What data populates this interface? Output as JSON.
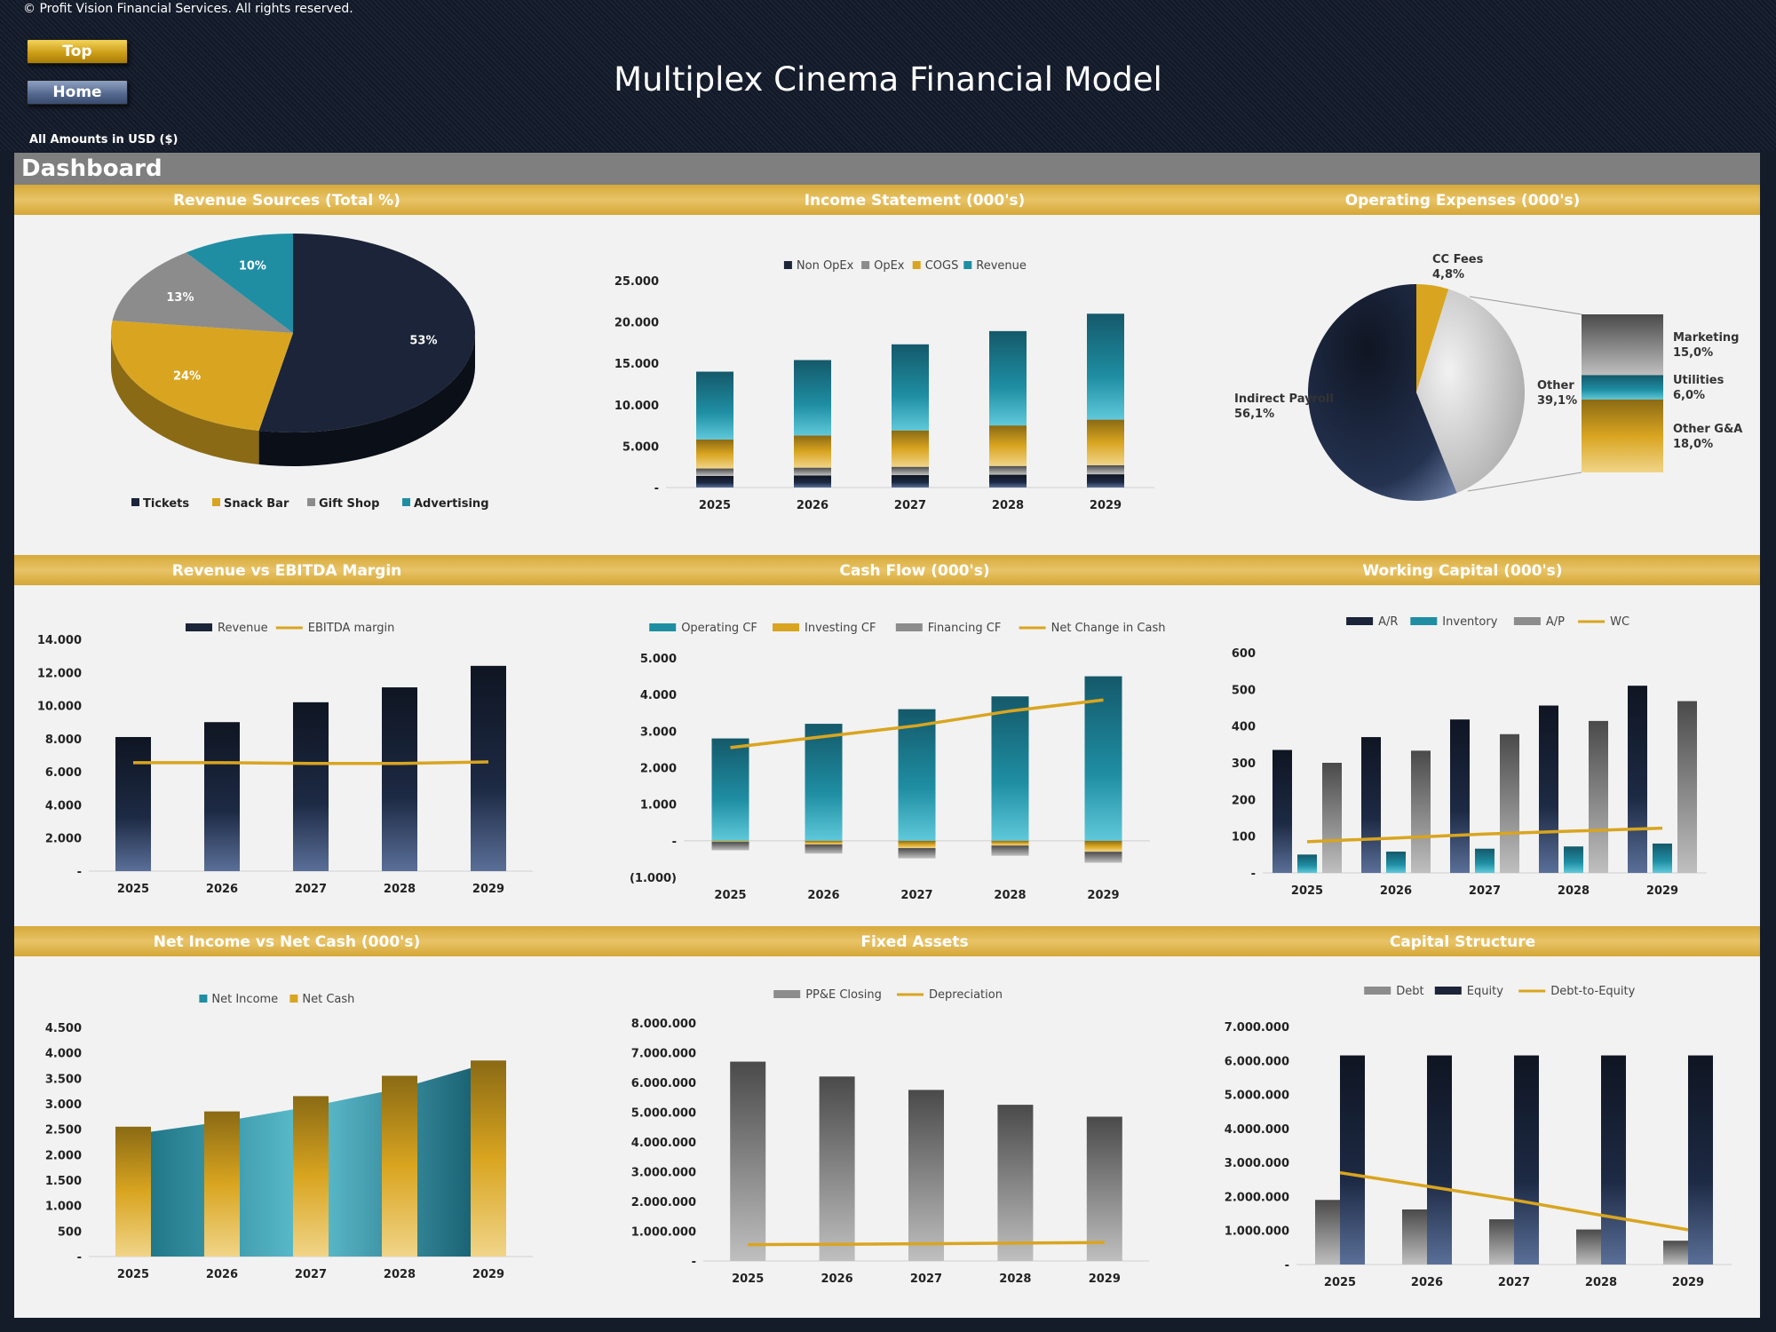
{
  "header": {
    "copyright": "© Profit Vision Financial Services. All rights reserved.",
    "title": "Multiplex Cinema Financial Model",
    "amounts_note": "All Amounts in  USD ($)",
    "buttons": {
      "top": "Top",
      "home": "Home"
    },
    "dashboard_label": "Dashboard"
  },
  "colors": {
    "navy": "#1b2438",
    "gold": "#d9a520",
    "grey": "#8c8c8c",
    "teal": "#1f8ea3",
    "strip": "#dcae45"
  },
  "chart_data": [
    {
      "id": "revenue_sources",
      "type": "pie",
      "title": "Revenue Sources (Total %)",
      "labels": [
        "Tickets",
        "Snack Bar",
        "Gift Shop",
        "Advertising"
      ],
      "values": [
        53,
        24,
        13,
        10
      ],
      "data_labels": [
        "53%",
        "24%",
        "13%",
        "10%"
      ],
      "legend": "bottom"
    },
    {
      "id": "income_statement",
      "type": "bar",
      "stacked": true,
      "title": "Income Statement (000's)",
      "categories": [
        "2025",
        "2026",
        "2027",
        "2028",
        "2029"
      ],
      "series": [
        {
          "name": "Non OpEx",
          "values": [
            1400,
            1450,
            1500,
            1550,
            1600
          ]
        },
        {
          "name": "OpEx",
          "values": [
            900,
            950,
            1000,
            1050,
            1100
          ]
        },
        {
          "name": "COGS",
          "values": [
            3500,
            3900,
            4400,
            4900,
            5500
          ]
        },
        {
          "name": "Revenue",
          "values": [
            8200,
            9100,
            10400,
            11400,
            12800
          ]
        }
      ],
      "y_ticks": [
        "-",
        "5.000",
        "10.000",
        "15.000",
        "20.000",
        "25.000"
      ],
      "ylim": [
        0,
        25000
      ],
      "legend": "top"
    },
    {
      "id": "operating_expenses",
      "type": "pie",
      "title": "Operating Expenses (000's)",
      "labels": [
        "Indirect Payroll",
        "CC Fees",
        "Other"
      ],
      "values": [
        56.1,
        4.8,
        39.1
      ],
      "data_labels": [
        "Indirect Payroll\n56,1%",
        "CC Fees\n4,8%",
        "Other\n39,1%"
      ],
      "breakdown": {
        "labels": [
          "Marketing",
          "Utilities",
          "Other G&A"
        ],
        "values": [
          15.0,
          6.0,
          18.0
        ],
        "data_labels": [
          "Marketing\n15,0%",
          "Utilities\n6,0%",
          "Other G&A\n18,0%"
        ]
      }
    },
    {
      "id": "revenue_vs_ebitda",
      "type": "bar",
      "title": "Revenue vs EBITDA Margin",
      "categories": [
        "2025",
        "2026",
        "2027",
        "2028",
        "2029"
      ],
      "series": [
        {
          "name": "Revenue",
          "type": "bar",
          "values": [
            8100,
            9000,
            10200,
            11100,
            12400
          ]
        },
        {
          "name": "EBITDA margin",
          "type": "line",
          "values": [
            6550,
            6550,
            6500,
            6500,
            6600
          ]
        }
      ],
      "y_ticks": [
        "-",
        "2.000",
        "4.000",
        "6.000",
        "8.000",
        "10.000",
        "12.000",
        "14.000"
      ],
      "ylim": [
        0,
        14000
      ],
      "legend": "top"
    },
    {
      "id": "cash_flow",
      "type": "bar",
      "stacked": true,
      "title": "Cash Flow (000's)",
      "categories": [
        "2025",
        "2026",
        "2027",
        "2028",
        "2029"
      ],
      "series": [
        {
          "name": "Operating CF",
          "type": "bar",
          "values": [
            2800,
            3200,
            3600,
            3950,
            4500
          ]
        },
        {
          "name": "Investing CF",
          "type": "bar",
          "values": [
            -30,
            -100,
            -200,
            -130,
            -300
          ]
        },
        {
          "name": "Financing CF",
          "type": "bar",
          "values": [
            -230,
            -250,
            -280,
            -280,
            -300
          ]
        },
        {
          "name": "Net Change in Cash",
          "type": "line",
          "values": [
            2550,
            2850,
            3150,
            3550,
            3850
          ]
        }
      ],
      "y_ticks": [
        "(1.000)",
        "-",
        "1.000",
        "2.000",
        "3.000",
        "4.000",
        "5.000"
      ],
      "ylim": [
        -1000,
        5000
      ],
      "legend": "top"
    },
    {
      "id": "working_capital",
      "type": "bar",
      "title": "Working Capital (000's)",
      "categories": [
        "2025",
        "2026",
        "2027",
        "2028",
        "2029"
      ],
      "series": [
        {
          "name": "A/R",
          "type": "bar",
          "values": [
            335,
            370,
            418,
            456,
            510
          ]
        },
        {
          "name": "Inventory",
          "type": "bar",
          "values": [
            50,
            58,
            66,
            72,
            80
          ]
        },
        {
          "name": "A/P",
          "type": "bar",
          "values": [
            300,
            333,
            378,
            414,
            468
          ]
        },
        {
          "name": "WC",
          "type": "line",
          "values": [
            85,
            95,
            106,
            114,
            122
          ]
        }
      ],
      "y_ticks": [
        "-",
        "100",
        "200",
        "300",
        "400",
        "500",
        "600"
      ],
      "ylim": [
        0,
        600
      ],
      "legend": "top"
    },
    {
      "id": "net_income_vs_net_cash",
      "type": "bar",
      "title": "Net Income vs Net Cash (000's)",
      "categories": [
        "2025",
        "2026",
        "2027",
        "2028",
        "2029"
      ],
      "series": [
        {
          "name": "Net Income",
          "type": "area",
          "values": [
            2400,
            2650,
            2950,
            3300,
            3800
          ]
        },
        {
          "name": "Net Cash",
          "type": "bar",
          "values": [
            2550,
            2850,
            3150,
            3550,
            3850
          ]
        }
      ],
      "y_ticks": [
        "-",
        "500",
        "1.000",
        "1.500",
        "2.000",
        "2.500",
        "3.000",
        "3.500",
        "4.000",
        "4.500"
      ],
      "ylim": [
        0,
        4500
      ],
      "legend": "top"
    },
    {
      "id": "fixed_assets",
      "type": "bar",
      "title": "Fixed Assets",
      "categories": [
        "2025",
        "2026",
        "2027",
        "2028",
        "2029"
      ],
      "series": [
        {
          "name": "PP&E Closing",
          "type": "bar",
          "values": [
            6700000,
            6200000,
            5750000,
            5250000,
            4850000
          ]
        },
        {
          "name": "Depreciation",
          "type": "line",
          "values": [
            550000,
            560000,
            580000,
            600000,
            620000
          ]
        }
      ],
      "y_ticks": [
        "-",
        "1.000.000",
        "2.000.000",
        "3.000.000",
        "4.000.000",
        "5.000.000",
        "6.000.000",
        "7.000.000",
        "8.000.000"
      ],
      "ylim": [
        0,
        8000000
      ],
      "legend": "top"
    },
    {
      "id": "capital_structure",
      "type": "bar",
      "title": "Capital Structure",
      "categories": [
        "2025",
        "2026",
        "2027",
        "2028",
        "2029"
      ],
      "series": [
        {
          "name": "Debt",
          "type": "bar",
          "values": [
            1900000,
            1620000,
            1330000,
            1030000,
            700000
          ]
        },
        {
          "name": "Equity",
          "type": "bar",
          "values": [
            6150000,
            6150000,
            6150000,
            6150000,
            6150000
          ]
        },
        {
          "name": "Debt-to-Equity",
          "type": "line",
          "values": [
            2700000,
            2300000,
            1900000,
            1450000,
            1020000
          ]
        }
      ],
      "y_ticks": [
        "-",
        "1.000.000",
        "2.000.000",
        "3.000.000",
        "4.000.000",
        "5.000.000",
        "6.000.000",
        "7.000.000"
      ],
      "ylim": [
        0,
        7000000
      ],
      "legend": "top"
    }
  ]
}
